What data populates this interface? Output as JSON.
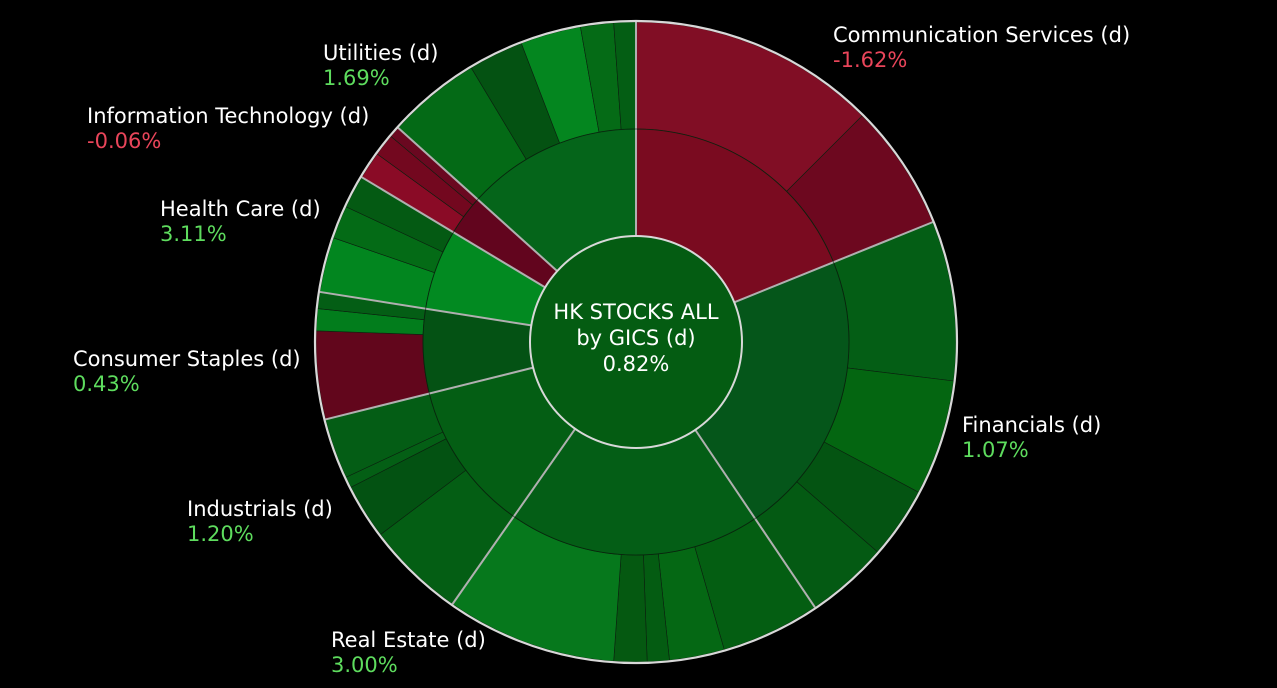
{
  "colors": {
    "background": "#000000",
    "positive_text": "#5edc5e",
    "negative_text": "#e9455a",
    "divider": "#b0b0b0",
    "outline": "#d8d8d8",
    "center_fill": "#045c12"
  },
  "chart_data": {
    "type": "sunburst",
    "center": {
      "line1": "HK STOCKS ALL",
      "line2": "by GICS (d)",
      "value": "0.82%"
    },
    "sectors": [
      {
        "name": "Communication Services (d)",
        "change": "-1.62%",
        "start": 0,
        "end": 68,
        "mid_color": "#7a0b20",
        "outer": [
          {
            "to": 45,
            "color": "#810e25"
          },
          {
            "to": 68,
            "color": "#6d081f"
          }
        ]
      },
      {
        "name": "Financials (d)",
        "change": "1.07%",
        "start": 68,
        "end": 146,
        "mid_color": "#05561a",
        "outer": [
          {
            "to": 97,
            "color": "#045e15"
          },
          {
            "to": 118,
            "color": "#046611"
          },
          {
            "to": 131,
            "color": "#045412"
          },
          {
            "to": 146,
            "color": "#045a13"
          }
        ]
      },
      {
        "name": "Real Estate (d)",
        "change": "3.00%",
        "start": 146,
        "end": 215,
        "mid_color": "#045e16",
        "outer": [
          {
            "to": 164,
            "color": "#045e12"
          },
          {
            "to": 174,
            "color": "#056814"
          },
          {
            "to": 178,
            "color": "#045c12"
          },
          {
            "to": 184,
            "color": "#055911"
          },
          {
            "to": 215,
            "color": "#06781c"
          }
        ]
      },
      {
        "name": "Industrials (d)",
        "change": "1.20%",
        "start": 215,
        "end": 256,
        "mid_color": "#045e14",
        "outer": [
          {
            "to": 233,
            "color": "#045e14"
          },
          {
            "to": 243,
            "color": "#035212"
          },
          {
            "to": 245,
            "color": "#045f15"
          },
          {
            "to": 256,
            "color": "#045d15"
          }
        ]
      },
      {
        "name": "Consumer Staples (d)",
        "change": "0.43%",
        "start": 256,
        "end": 279,
        "mid_color": "#045214",
        "outer": [
          {
            "to": 272,
            "color": "#62061c"
          },
          {
            "to": 276,
            "color": "#027d1c"
          },
          {
            "to": 279,
            "color": "#045e15"
          }
        ]
      },
      {
        "name": "Health Care (d)",
        "change": "3.11%",
        "start": 279,
        "end": 301,
        "mid_color": "#028a21",
        "outer": [
          {
            "to": 289,
            "color": "#02861f"
          },
          {
            "to": 295,
            "color": "#046b16"
          },
          {
            "to": 301,
            "color": "#045a13"
          }
        ]
      },
      {
        "name": "Information Technology (d)",
        "change": "-0.06%",
        "start": 301,
        "end": 312,
        "mid_color": "#62051e",
        "outer": [
          {
            "to": 306,
            "color": "#8a0b26"
          },
          {
            "to": 310,
            "color": "#73081f"
          },
          {
            "to": 312,
            "color": "#6a0820"
          }
        ]
      },
      {
        "name": "Utilities (d)",
        "change": "1.69%",
        "start": 312,
        "end": 360,
        "mid_color": "#05651a",
        "outer": [
          {
            "to": 329,
            "color": "#046a16"
          },
          {
            "to": 339,
            "color": "#045212"
          },
          {
            "to": 350,
            "color": "#04861f"
          },
          {
            "to": 356,
            "color": "#056b16"
          },
          {
            "to": 360,
            "color": "#045e14"
          }
        ]
      }
    ]
  }
}
